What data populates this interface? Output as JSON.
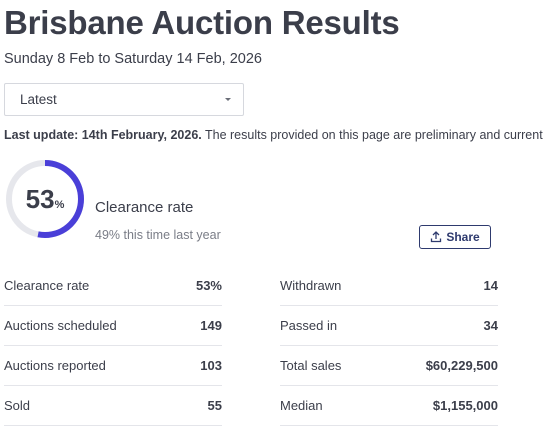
{
  "header": {
    "title": "Brisbane Auction Results",
    "date_range": "Sunday 8 Feb to Saturday 14 Feb, 2026"
  },
  "period_select": {
    "selected": "Latest",
    "icon": "chevron-down-icon"
  },
  "update_notice": {
    "bold": "Last update: 14th February, 2026.",
    "text": " The results provided on this page are preliminary and current"
  },
  "clearance": {
    "value_number": "53",
    "value_unit": "%",
    "fraction": 0.53,
    "label": "Clearance rate",
    "comparison": "49% this time last year",
    "ring_color": "#4a3fd8",
    "track_color": "#e6e7ec"
  },
  "share_button": {
    "label": "Share",
    "icon": "share-upload-icon"
  },
  "stats_left": [
    {
      "label": "Clearance rate",
      "value": "53%"
    },
    {
      "label": "Auctions scheduled",
      "value": "149"
    },
    {
      "label": "Auctions reported",
      "value": "103"
    },
    {
      "label": "Sold",
      "value": "55"
    }
  ],
  "stats_right": [
    {
      "label": "Withdrawn",
      "value": "14"
    },
    {
      "label": "Passed in",
      "value": "34"
    },
    {
      "label": "Total sales",
      "value": "$60,229,500"
    },
    {
      "label": "Median",
      "value": "$1,155,000"
    }
  ]
}
